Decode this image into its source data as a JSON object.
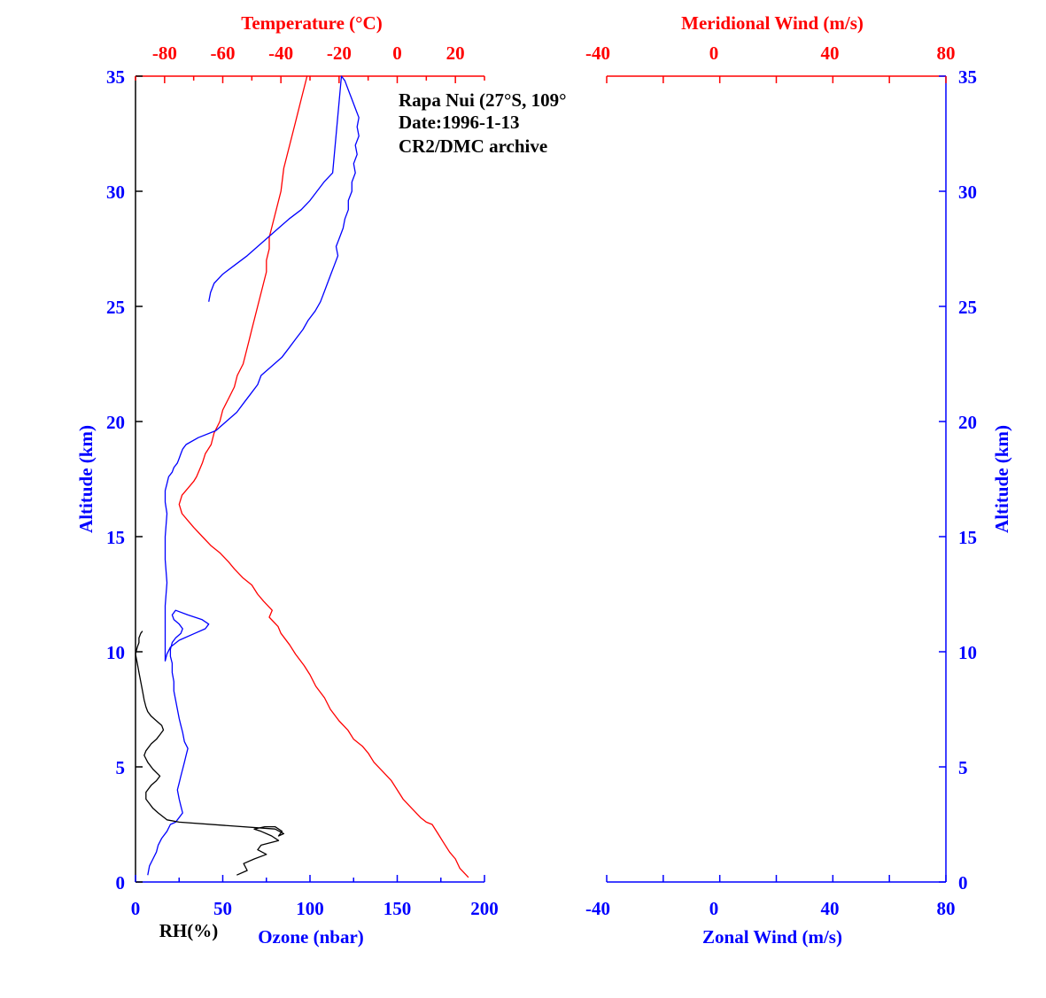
{
  "chart_data": [
    {
      "type": "line",
      "station": {
        "line1": "Rapa Nui (27°S, 109°",
        "line2": "Date:1996-1-13",
        "line3": "CR2/DMC archive"
      },
      "axes": {
        "altitude_label": "Altitude (km)",
        "altitude_range": [
          0,
          35
        ],
        "altitude_ticks": [
          "0",
          "5",
          "10",
          "15",
          "20",
          "25",
          "30",
          "35"
        ],
        "temperature_label": "Temperature (°C)",
        "temperature_range": [
          -90,
          30
        ],
        "temperature_ticks": [
          "-80",
          "-60",
          "-40",
          "-20",
          "0",
          "20"
        ],
        "ozone_label": "Ozone (nbar)",
        "ozone_range": [
          0,
          200
        ],
        "ozone_ticks": [
          "0",
          "50",
          "100",
          "150",
          "200"
        ],
        "rh_label": "RH(%)"
      },
      "series": [
        {
          "name": "Temperature (°C)",
          "color": "#ff0000",
          "x": [
            24.5,
            21.5,
            20,
            18,
            16,
            14,
            12,
            10,
            8,
            5,
            2,
            0,
            -2,
            -5,
            -8,
            -10,
            -12,
            -15,
            -17,
            -20,
            -23,
            -25,
            -28,
            -30,
            -32,
            -35,
            -37,
            -40,
            -41,
            -44,
            -43,
            -46,
            -48,
            -50,
            -53,
            -56,
            -58,
            -61,
            -64,
            -67,
            -70,
            -72,
            -74,
            -75,
            -74,
            -72,
            -70,
            -69,
            -68,
            -67,
            -66,
            -64,
            -63,
            -61,
            -60,
            -58,
            -56,
            -55,
            -53,
            -52,
            -51,
            -50,
            -49,
            -48,
            -47,
            -46,
            -45,
            -45,
            -44,
            -44,
            -43,
            -42,
            -41,
            -40,
            -39,
            -37,
            -35,
            -33,
            -31
          ],
          "y": [
            0.2,
            0.6,
            1.0,
            1.3,
            1.7,
            2.1,
            2.5,
            2.6,
            2.8,
            3.2,
            3.6,
            4.0,
            4.4,
            4.8,
            5.2,
            5.6,
            5.9,
            6.2,
            6.6,
            7.0,
            7.5,
            8.0,
            8.5,
            9.0,
            9.4,
            9.9,
            10.3,
            10.8,
            11.1,
            11.5,
            11.8,
            12.2,
            12.5,
            12.9,
            13.2,
            13.6,
            13.9,
            14.3,
            14.6,
            15.0,
            15.4,
            15.7,
            16.0,
            16.4,
            16.8,
            17.1,
            17.4,
            17.6,
            17.9,
            18.2,
            18.6,
            19.0,
            19.5,
            20.0,
            20.5,
            21.0,
            21.5,
            22.0,
            22.5,
            23.0,
            23.5,
            24.0,
            24.5,
            25.0,
            25.5,
            26.0,
            26.5,
            27.0,
            27.5,
            28.0,
            28.5,
            29.0,
            29.5,
            30.0,
            31.0,
            32.0,
            33.0,
            34.0,
            35.0
          ]
        },
        {
          "name": "Ozone (nbar)",
          "color": "#0000ff",
          "x": [
            7,
            8,
            10,
            12,
            13,
            15,
            18,
            20,
            23,
            25,
            27,
            26,
            25,
            24,
            25,
            26,
            27,
            28,
            29,
            30,
            28,
            27,
            26,
            25,
            24,
            23,
            22,
            22,
            21,
            21,
            20,
            20,
            21,
            23,
            26,
            27,
            25,
            22,
            21,
            23,
            30,
            38,
            42,
            40,
            34,
            25,
            20,
            18,
            17,
            17,
            18,
            17,
            17,
            18,
            17,
            17,
            18,
            19,
            21,
            22,
            24,
            25,
            26,
            27,
            29,
            36,
            46,
            52,
            58,
            62,
            66,
            70,
            72,
            78,
            84,
            88,
            92,
            96,
            99,
            103,
            106,
            108,
            110,
            112,
            114,
            116,
            115,
            117,
            119,
            120,
            122,
            122,
            124,
            124,
            126,
            125,
            127,
            126,
            128,
            127,
            128,
            126,
            124,
            122,
            120,
            118,
            113,
            108,
            104,
            100,
            95,
            88,
            82,
            76,
            70,
            64,
            57,
            50,
            45,
            43,
            42
          ],
          "y": [
            0.3,
            0.7,
            1.0,
            1.3,
            1.6,
            1.9,
            2.2,
            2.5,
            2.6,
            2.8,
            3.0,
            3.3,
            3.6,
            4.0,
            4.3,
            4.6,
            4.9,
            5.2,
            5.5,
            5.8,
            6.1,
            6.5,
            6.8,
            7.1,
            7.5,
            7.9,
            8.3,
            8.7,
            9.1,
            9.5,
            9.8,
            10.1,
            10.4,
            10.6,
            10.8,
            11.0,
            11.2,
            11.4,
            11.6,
            11.8,
            11.6,
            11.4,
            11.2,
            11.0,
            10.8,
            10.5,
            10.2,
            9.9,
            9.6,
            12.0,
            13.0,
            14.0,
            15.0,
            16.0,
            16.5,
            17.0,
            17.3,
            17.6,
            17.8,
            18.0,
            18.2,
            18.4,
            18.6,
            18.8,
            19.0,
            19.3,
            19.6,
            20.0,
            20.4,
            20.8,
            21.2,
            21.6,
            22.0,
            22.4,
            22.8,
            23.2,
            23.6,
            24.0,
            24.4,
            24.8,
            25.2,
            25.6,
            26.0,
            26.4,
            26.8,
            27.2,
            27.6,
            28.0,
            28.4,
            28.8,
            29.2,
            29.6,
            30.0,
            30.4,
            30.8,
            31.2,
            31.6,
            32.0,
            32.4,
            32.8,
            33.2,
            33.6,
            34.0,
            34.4,
            34.8,
            35.0,
            30.8,
            30.4,
            30.0,
            29.6,
            29.2,
            28.8,
            28.4,
            28.0,
            27.6,
            27.2,
            26.8,
            26.4,
            26.0,
            25.6,
            25.2
          ]
        },
        {
          "name": "RH(%)",
          "color": "#000000",
          "x": [
            58,
            64,
            62,
            68,
            75,
            70,
            72,
            82,
            78,
            72,
            68,
            74,
            80,
            84,
            82,
            82,
            85,
            80,
            25,
            18,
            13,
            10,
            8,
            6,
            6,
            9,
            12,
            14,
            10,
            7,
            5,
            6,
            9,
            12,
            14,
            16,
            15,
            12,
            9,
            7,
            6,
            5,
            4,
            3,
            2,
            1,
            0,
            1,
            2,
            2,
            3,
            4
          ],
          "y": [
            0.3,
            0.5,
            0.8,
            1.0,
            1.2,
            1.4,
            1.6,
            1.8,
            2.0,
            2.2,
            2.3,
            2.4,
            2.4,
            2.2,
            2.0,
            2.0,
            2.1,
            2.3,
            2.6,
            2.7,
            3.0,
            3.2,
            3.4,
            3.6,
            3.9,
            4.2,
            4.4,
            4.6,
            4.9,
            5.2,
            5.5,
            5.7,
            6.0,
            6.2,
            6.4,
            6.6,
            6.8,
            7.0,
            7.2,
            7.4,
            7.6,
            7.9,
            8.3,
            8.7,
            9.1,
            9.5,
            9.9,
            10.2,
            10.4,
            10.6,
            10.8,
            10.9
          ]
        }
      ]
    },
    {
      "type": "line",
      "axes": {
        "altitude_label": "Altitude (km)",
        "altitude_range": [
          0,
          35
        ],
        "altitude_ticks": [
          "0",
          "5",
          "10",
          "15",
          "20",
          "25",
          "30",
          "35"
        ],
        "meridional_label": "Meridional Wind (m/s)",
        "meridional_range": [
          -40,
          80
        ],
        "meridional_ticks": [
          "-40",
          "0",
          "40",
          "80"
        ],
        "zonal_label": "Zonal Wind (m/s)",
        "zonal_range": [
          -40,
          80
        ],
        "zonal_ticks": [
          "-40",
          "0",
          "40",
          "80"
        ]
      },
      "series": []
    }
  ]
}
